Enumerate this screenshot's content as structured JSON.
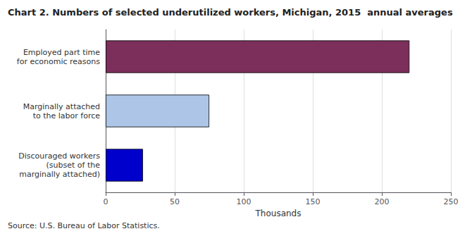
{
  "chart_data": {
    "type": "bar",
    "orientation": "horizontal",
    "title": "Chart 2. Numbers of selected underutilized workers, Michigan, 2015  annual averages",
    "categories": [
      "Discouraged workers\n(subset of the\nmarginally attached)",
      "Marginally attached\nto the labor force",
      "Employed part time\nfor economic reasons"
    ],
    "values": [
      27,
      75,
      220
    ],
    "colors": [
      "#0000cc",
      "#adc6e8",
      "#7b2f5a"
    ],
    "xlabel": "Thousands",
    "xlim": [
      0,
      250
    ],
    "xticks": [
      0,
      50,
      100,
      150,
      200,
      250
    ],
    "grid": true,
    "source": "Source: U.S. Bureau of Labor Statistics."
  }
}
